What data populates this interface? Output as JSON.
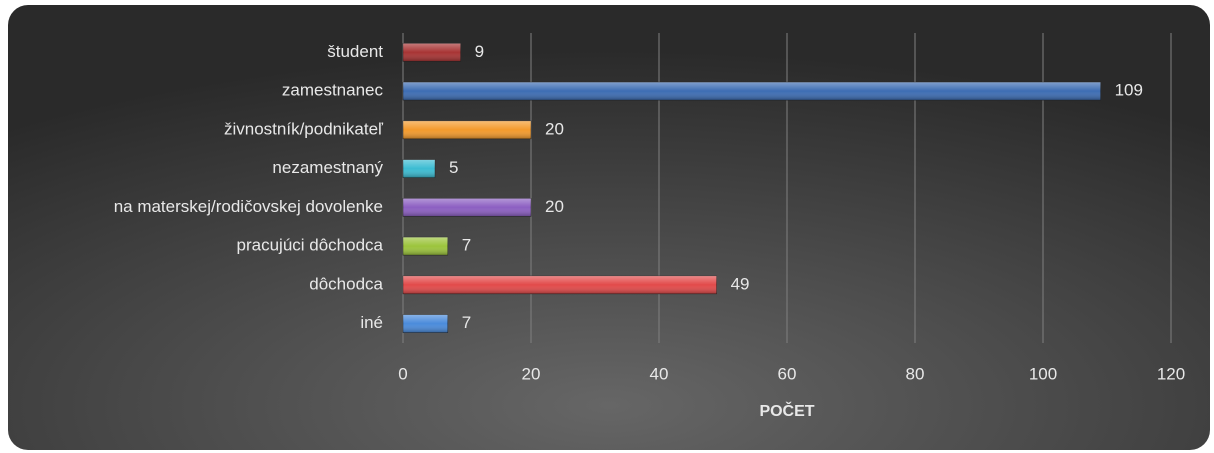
{
  "chart_data": {
    "type": "barh",
    "categories": [
      "študent",
      "zamestnanec",
      "živnostník/podnikateľ",
      "nezamestnaný",
      "na materskej/rodičovskej dovolenke",
      "pracujúci dôchodca",
      "dôchodca",
      "iné"
    ],
    "values": [
      9,
      109,
      20,
      5,
      20,
      7,
      49,
      7
    ],
    "colors": [
      "#a83434",
      "#3d6db3",
      "#f39a2c",
      "#3cbcd2",
      "#8c5fc2",
      "#9cc43c",
      "#e24a4a",
      "#4a8bdb"
    ],
    "x_label": "POČET",
    "xlim": [
      0,
      120
    ],
    "xticks": [
      0,
      20,
      40,
      60,
      80,
      100,
      120
    ],
    "grid": true
  }
}
